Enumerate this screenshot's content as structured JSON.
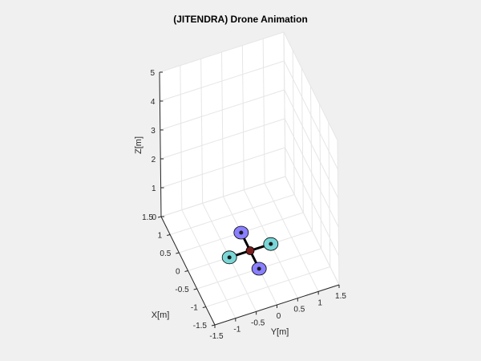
{
  "chart_data": {
    "type": "3d-scatter",
    "title": "(JITENDRA) Drone Animation",
    "xlabel": "X[m]",
    "ylabel": "Y[m]",
    "zlabel": "Z[m]",
    "xlim": [
      -1.5,
      1.5
    ],
    "ylim": [
      -1.5,
      1.5
    ],
    "zlim": [
      0,
      5
    ],
    "x_ticks": [
      "-1.5",
      "-1",
      "-0.5",
      "0",
      "0.5",
      "1",
      "1.5"
    ],
    "y_ticks": [
      "-1.5",
      "-1",
      "-0.5",
      "0",
      "0.5",
      "1",
      "1.5"
    ],
    "z_ticks": [
      "0",
      "1",
      "2",
      "3",
      "4",
      "5"
    ],
    "grid": true,
    "drone": {
      "center": [
        0.0,
        0.0,
        0.0
      ],
      "arm_color": "#000000",
      "body_color": "#7a1d1d",
      "rotors": [
        {
          "position": [
            -0.5,
            0.0,
            0.0
          ],
          "color": "#8a80ff"
        },
        {
          "position": [
            0.5,
            0.0,
            0.0
          ],
          "color": "#8a80ff"
        },
        {
          "position": [
            0.0,
            -0.5,
            0.0
          ],
          "color": "#7ad6d6"
        },
        {
          "position": [
            0.0,
            0.5,
            0.0
          ],
          "color": "#7ad6d6"
        }
      ]
    }
  },
  "colors": {
    "figure_bg": "#f0f0f0",
    "axes_bg": "#ffffff",
    "grid": "#e6e6e6",
    "axis_line": "#262626"
  }
}
